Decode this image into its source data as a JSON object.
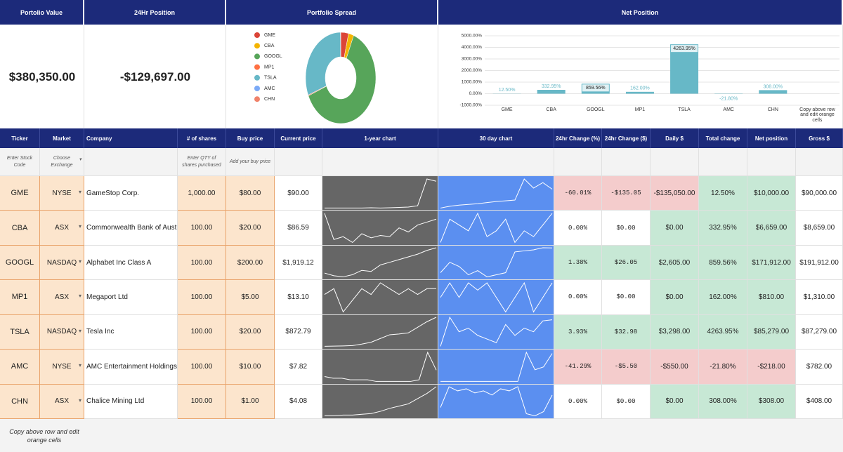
{
  "header": {
    "portfolio_value": "Portolio Value",
    "position_24h": "24Hr Position",
    "spread": "Portfolio Spread",
    "net_position": "Net Position"
  },
  "summary": {
    "portfolio_value": "$380,350.00",
    "position_24h": "-$129,697.00"
  },
  "chart_data": [
    {
      "type": "pie",
      "categories": [
        "GME",
        "CBA",
        "GOOGL",
        "MP1",
        "TSLA",
        "AMC",
        "CHN"
      ],
      "values": [
        3.6,
        2.4,
        62.5,
        0.3,
        31,
        0,
        0.1
      ],
      "colors": [
        "#db4437",
        "#f4b400",
        "#57a55a",
        "#ff7043",
        "#67b8c7",
        "#7baaf7",
        "#f0826a"
      ],
      "legend": "left"
    },
    {
      "type": "bar",
      "categories": [
        "GME",
        "CBA",
        "GOOGL",
        "MP1",
        "TSLA",
        "AMC",
        "CHN",
        "Copy above row and edit orange cells"
      ],
      "values": [
        12.5,
        332.95,
        859.56,
        162,
        4263.95,
        -21.8,
        308,
        null
      ],
      "value_labels": [
        "12.50%",
        "332.95%",
        "859.56%",
        "162.00%",
        "4263.95%",
        "-21.80%",
        "308.00%",
        null
      ],
      "color": "#67b8c7",
      "ylim": [
        -1000,
        5000
      ],
      "yticks": [
        {
          "value": -1000,
          "label": "-1000.00%"
        },
        {
          "value": 0,
          "label": "0.00%"
        },
        {
          "value": 1000,
          "label": "1000.00%"
        },
        {
          "value": 2000,
          "label": "2000.00%"
        },
        {
          "value": 3000,
          "label": "3000.00%"
        },
        {
          "value": 4000,
          "label": "4000.00%"
        },
        {
          "value": 5000,
          "label": "5000.00%"
        }
      ],
      "grid": true
    }
  ],
  "table": {
    "columns": [
      "Ticker",
      "Market",
      "Company",
      "# of shares",
      "Buy price",
      "Current price",
      "1-year chart",
      "30 day chart",
      "24hr Change (%)",
      "24hr Change ($)",
      "Daily $",
      "Total change",
      "Net position",
      "Gross $"
    ],
    "hints": {
      "ticker": "Enter Stock Code",
      "market": "Choose Exchange",
      "shares": "Enter QTY of shares purchased",
      "buy": "Add your buy price"
    },
    "rows": [
      {
        "ticker": "GME",
        "market": "NYSE",
        "company": "GameStop Corp.",
        "shares": "1,000.00",
        "buy": "$80.00",
        "current": "$90.00",
        "change_pct": "-60.01%",
        "change_usd": "-$135.05",
        "daily": "-$135,050.00",
        "total_change": "12.50%",
        "net_position": "$10,000.00",
        "gross": "$90,000.00",
        "year_chart": [
          5,
          5,
          5,
          5,
          5,
          6,
          5,
          6,
          7,
          8,
          12,
          95,
          88
        ],
        "month_chart": [
          40,
          45,
          48,
          50,
          52,
          55,
          58,
          60,
          62,
          120,
          95,
          110,
          92
        ]
      },
      {
        "ticker": "CBA",
        "market": "ASX",
        "company": "Commonwealth Bank of Australia",
        "shares": "100.00",
        "buy": "$20.00",
        "current": "$86.59",
        "change_pct": "0.00%",
        "change_usd": "$0.00",
        "daily": "$0.00",
        "total_change": "332.95%",
        "net_position": "$6,659.00",
        "gross": "$8,659.00",
        "year_chart": [
          80,
          35,
          40,
          30,
          45,
          38,
          42,
          40,
          55,
          48,
          60,
          65,
          70
        ],
        "month_chart": [
          84,
          88,
          87,
          86,
          89,
          85,
          86,
          88,
          84,
          86,
          85,
          87,
          89
        ]
      },
      {
        "ticker": "GOOGL",
        "market": "NASDAQ",
        "company": "Alphabet Inc Class A",
        "shares": "100.00",
        "buy": "$200.00",
        "current": "$1,919.12",
        "change_pct": "1.38%",
        "change_usd": "$26.05",
        "daily": "$2,605.00",
        "total_change": "859.56%",
        "net_position": "$171,912.00",
        "gross": "$191,912.00",
        "year_chart": [
          1450,
          1400,
          1380,
          1420,
          1500,
          1480,
          1600,
          1650,
          1700,
          1750,
          1800,
          1870,
          1919
        ],
        "month_chart": [
          1800,
          1850,
          1830,
          1790,
          1810,
          1780,
          1790,
          1800,
          1900,
          1905,
          1910,
          1920,
          1919
        ]
      },
      {
        "ticker": "MP1",
        "market": "ASX",
        "company": "Megaport Ltd",
        "shares": "100.00",
        "buy": "$5.00",
        "current": "$13.10",
        "change_pct": "0.00%",
        "change_usd": "$0.00",
        "daily": "$0.00",
        "total_change": "162.00%",
        "net_position": "$810.00",
        "gross": "$1,310.00",
        "year_chart": [
          12,
          13,
          9,
          11,
          13,
          12,
          14,
          13,
          12,
          13,
          12,
          13,
          13
        ],
        "month_chart": [
          13,
          14,
          13,
          14,
          13.5,
          14,
          13,
          12,
          13,
          14,
          12,
          13,
          14
        ]
      },
      {
        "ticker": "TSLA",
        "market": "NASDAQ",
        "company": "Tesla Inc",
        "shares": "100.00",
        "buy": "$20.00",
        "current": "$872.79",
        "change_pct": "3.93%",
        "change_usd": "$32.98",
        "daily": "$3,298.00",
        "total_change": "4263.95%",
        "net_position": "$85,279.00",
        "gross": "$87,279.00",
        "year_chart": [
          90,
          95,
          100,
          110,
          150,
          200,
          300,
          400,
          420,
          450,
          600,
          750,
          870
        ],
        "month_chart": [
          800,
          880,
          840,
          850,
          830,
          820,
          810,
          860,
          830,
          850,
          840,
          870,
          873
        ]
      },
      {
        "ticker": "AMC",
        "market": "NYSE",
        "company": "AMC Entertainment Holdings Inc",
        "shares": "100.00",
        "buy": "$10.00",
        "current": "$7.82",
        "change_pct": "-41.29%",
        "change_usd": "-$5.50",
        "daily": "-$550.00",
        "total_change": "-21.80%",
        "net_position": "-$218.00",
        "gross": "$782.00",
        "year_chart": [
          5,
          4,
          4,
          3,
          3,
          3,
          2,
          2,
          2,
          2,
          2,
          3,
          20,
          9
        ],
        "month_chart": [
          3,
          3,
          3,
          3,
          3,
          3,
          3,
          3,
          3,
          3,
          8,
          5,
          5.5,
          7.8
        ]
      },
      {
        "ticker": "CHN",
        "market": "ASX",
        "company": "Chalice Mining Ltd",
        "shares": "100.00",
        "buy": "$1.00",
        "current": "$4.08",
        "change_pct": "0.00%",
        "change_usd": "$0.00",
        "daily": "$0.00",
        "total_change": "308.00%",
        "net_position": "$308.00",
        "gross": "$408.00",
        "year_chart": [
          0.2,
          0.2,
          0.3,
          0.3,
          0.4,
          0.5,
          0.8,
          1.2,
          1.5,
          1.8,
          2.5,
          3.2,
          4.1
        ],
        "month_chart": [
          3.5,
          4.5,
          4.3,
          4.4,
          4.2,
          4.3,
          4.1,
          4.4,
          4.3,
          4.5,
          3.2,
          3.1,
          3.3,
          4.1
        ]
      }
    ],
    "footer": "Copy above row and edit orange cells"
  }
}
